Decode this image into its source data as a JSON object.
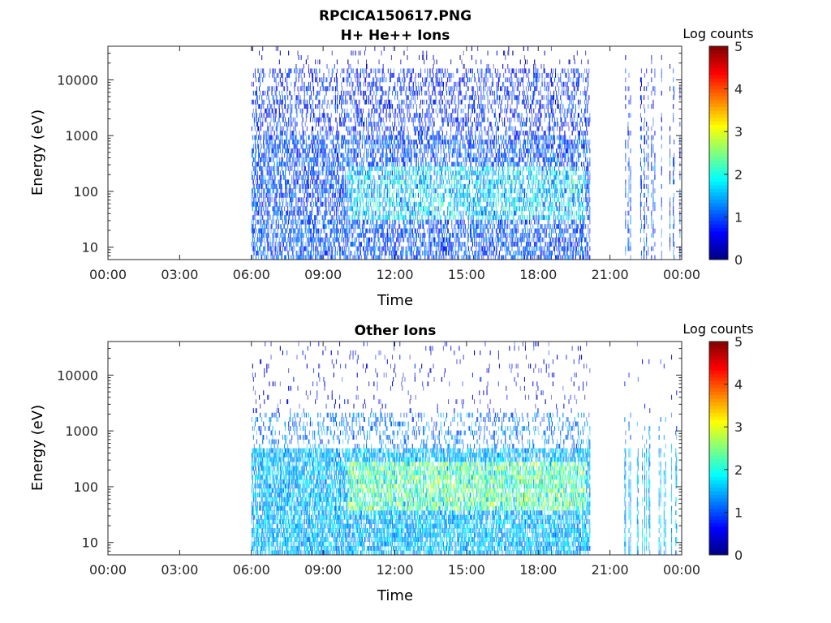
{
  "figure_title": "RPCICA150617.PNG",
  "chart_data": [
    {
      "type": "heatmap",
      "title": "H+ He++ Ions",
      "xlabel": "Time",
      "ylabel": "Energy (eV)",
      "x_ticks": [
        "00:00",
        "03:00",
        "06:00",
        "09:00",
        "12:00",
        "15:00",
        "18:00",
        "21:00",
        "00:00"
      ],
      "x_range_hours": [
        0,
        24
      ],
      "y_ticks": [
        "10",
        "100",
        "1000",
        "10000"
      ],
      "y_tick_values": [
        10,
        100,
        1000,
        10000
      ],
      "y_scale": "log",
      "ylim": [
        6,
        40000
      ],
      "colorbar": {
        "label": "Log counts",
        "ticks": [
          "0",
          "1",
          "2",
          "3",
          "4",
          "5"
        ],
        "range": [
          0,
          5
        ],
        "colormap": "jet"
      },
      "data_coverage_hours": [
        [
          6.0,
          20.15
        ],
        [
          21.6,
          23.95
        ]
      ],
      "dominant_level_log_counts": 1.0,
      "peak_level_log_counts": 2.3,
      "peak_energy_range_eV": [
        30,
        300
      ]
    },
    {
      "type": "heatmap",
      "title": "Other Ions",
      "xlabel": "Time",
      "ylabel": "Energy (eV)",
      "x_ticks": [
        "00:00",
        "03:00",
        "06:00",
        "09:00",
        "12:00",
        "15:00",
        "18:00",
        "21:00",
        "00:00"
      ],
      "x_range_hours": [
        0,
        24
      ],
      "y_ticks": [
        "10",
        "100",
        "1000",
        "10000"
      ],
      "y_tick_values": [
        10,
        100,
        1000,
        10000
      ],
      "y_scale": "log",
      "ylim": [
        6,
        40000
      ],
      "colorbar": {
        "label": "Log counts",
        "ticks": [
          "0",
          "1",
          "2",
          "3",
          "4",
          "5"
        ],
        "range": [
          0,
          5
        ],
        "colormap": "jet"
      },
      "data_coverage_hours": [
        [
          6.0,
          20.15
        ],
        [
          21.6,
          23.95
        ]
      ],
      "dominant_level_log_counts": 1.5,
      "peak_level_log_counts": 3.0,
      "peak_energy_range_eV": [
        40,
        300
      ]
    }
  ]
}
